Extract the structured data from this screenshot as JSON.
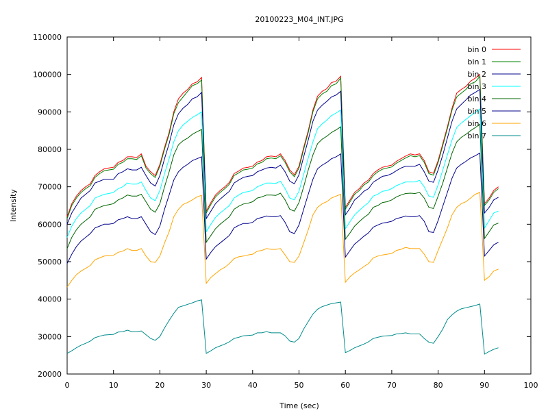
{
  "chart_data": {
    "type": "line",
    "title": "20100223_M04_INT.JPG",
    "xlabel": "Time (sec)",
    "ylabel": "Intensity",
    "xlim": [
      0,
      100
    ],
    "ylim": [
      20000,
      110000
    ],
    "xticks": [
      0,
      10,
      20,
      30,
      40,
      50,
      60,
      70,
      80,
      90,
      100
    ],
    "yticks": [
      20000,
      30000,
      40000,
      50000,
      60000,
      70000,
      80000,
      90000,
      100000,
      110000
    ],
    "grid": false,
    "legend_position": "top-right",
    "x": [
      0,
      1,
      2,
      3,
      4,
      5,
      6,
      7,
      8,
      9,
      10,
      11,
      12,
      13,
      14,
      15,
      16,
      17,
      18,
      19,
      20,
      21,
      22,
      23,
      24,
      25,
      26,
      27,
      28,
      29,
      30,
      31,
      32,
      33,
      34,
      35,
      36,
      37,
      38,
      39,
      40,
      41,
      42,
      43,
      44,
      45,
      46,
      47,
      48,
      49,
      50,
      51,
      52,
      53,
      54,
      55,
      56,
      57,
      58,
      59,
      60,
      61,
      62,
      63,
      64,
      65,
      66,
      67,
      68,
      69,
      70,
      71,
      72,
      73,
      74,
      75,
      76,
      77,
      78,
      79,
      80,
      81,
      82,
      83,
      84,
      85,
      86,
      87,
      88,
      89,
      90,
      91,
      92,
      93
    ],
    "series": [
      {
        "name": "bin 0",
        "color": "#ff0000",
        "values": [
          62000,
          65500,
          67500,
          69000,
          70000,
          70800,
          73000,
          74000,
          74800,
          75000,
          75200,
          76500,
          77000,
          78000,
          78000,
          77800,
          78800,
          75500,
          74000,
          73000,
          76000,
          80500,
          84500,
          90000,
          93500,
          95000,
          96000,
          97500,
          98000,
          99200,
          63500,
          65800,
          67800,
          69000,
          70000,
          71200,
          73500,
          74200,
          75000,
          75200,
          75500,
          76600,
          77000,
          78000,
          78200,
          78000,
          78800,
          77000,
          74500,
          73200,
          75500,
          80500,
          85000,
          90500,
          94200,
          95500,
          96200,
          97800,
          98200,
          99500,
          64500,
          66500,
          68500,
          69500,
          71000,
          71800,
          73500,
          74500,
          75200,
          75500,
          75800,
          76800,
          77500,
          78200,
          78800,
          78500,
          78800,
          77000,
          74000,
          73600,
          77000,
          81500,
          86000,
          91000,
          95000,
          96000,
          96800,
          98200,
          99000,
          100000,
          65500,
          67000,
          69000,
          70000
        ]
      },
      {
        "name": "bin 1",
        "color": "#008000",
        "values": [
          61500,
          65000,
          67000,
          68500,
          69500,
          70300,
          72500,
          73500,
          74300,
          74500,
          74700,
          76000,
          76500,
          77500,
          77500,
          77300,
          78300,
          75000,
          73500,
          72500,
          75500,
          80000,
          84000,
          89500,
          92500,
          94000,
          95500,
          97000,
          97500,
          98500,
          63000,
          65300,
          67300,
          68500,
          69500,
          70700,
          73000,
          73700,
          74500,
          74700,
          75000,
          76100,
          76500,
          77500,
          77700,
          77500,
          78300,
          76500,
          74000,
          72700,
          75000,
          80000,
          84500,
          90000,
          93500,
          94800,
          95500,
          97000,
          97500,
          99000,
          64000,
          66000,
          68000,
          69000,
          70500,
          71300,
          73000,
          74000,
          74700,
          75000,
          75300,
          76300,
          77000,
          77700,
          78300,
          78000,
          78300,
          76500,
          73500,
          73100,
          76500,
          81000,
          85500,
          90500,
          94000,
          95000,
          96000,
          97500,
          98000,
          99500,
          65000,
          66500,
          68500,
          69500
        ]
      },
      {
        "name": "bin 2",
        "color": "#00008b",
        "values": [
          60000,
          63000,
          65000,
          67000,
          68000,
          69000,
          71000,
          71500,
          72000,
          72000,
          72000,
          73500,
          74000,
          74800,
          74500,
          74500,
          75200,
          73000,
          71000,
          70200,
          73000,
          77500,
          81500,
          86500,
          89500,
          91000,
          92000,
          93500,
          94000,
          95200,
          61500,
          63500,
          65500,
          66700,
          67800,
          68800,
          71000,
          71800,
          72500,
          72800,
          73000,
          74000,
          74500,
          75000,
          75200,
          75000,
          75800,
          74000,
          71500,
          70800,
          73200,
          78000,
          82500,
          87500,
          90500,
          91800,
          92800,
          94000,
          94500,
          95500,
          62500,
          64300,
          66500,
          67500,
          68800,
          69500,
          71200,
          72000,
          72800,
          73000,
          73500,
          74300,
          75000,
          75500,
          75500,
          75500,
          76000,
          74000,
          71500,
          71200,
          74500,
          78500,
          83000,
          87500,
          90800,
          92000,
          93200,
          94500,
          95200,
          96000,
          63000,
          64500,
          66500,
          67200
        ]
      },
      {
        "name": "bin 3",
        "color": "#00ffff",
        "values": [
          56500,
          59500,
          61500,
          63000,
          64000,
          65000,
          67000,
          67500,
          68000,
          68200,
          68500,
          69500,
          70000,
          71000,
          70700,
          70700,
          71300,
          69000,
          67000,
          66300,
          69000,
          73500,
          77500,
          82000,
          85000,
          86500,
          87500,
          88500,
          89200,
          90000,
          58000,
          60000,
          61800,
          63000,
          64000,
          65000,
          67000,
          67800,
          68500,
          68700,
          69000,
          70000,
          70500,
          71000,
          71000,
          70900,
          71500,
          69500,
          67000,
          66500,
          68800,
          73300,
          77700,
          82000,
          85500,
          86800,
          87800,
          89000,
          89700,
          90500,
          58800,
          60700,
          62500,
          63700,
          64800,
          65800,
          67500,
          68000,
          68800,
          69000,
          69500,
          70300,
          70800,
          71300,
          71300,
          71300,
          71700,
          70000,
          67500,
          67200,
          70500,
          74500,
          78500,
          82500,
          85800,
          87000,
          88000,
          89000,
          89800,
          90800,
          59000,
          61000,
          63000,
          63500
        ]
      },
      {
        "name": "bin 4",
        "color": "#006400",
        "values": [
          53500,
          56500,
          58500,
          60000,
          61000,
          62000,
          64000,
          64500,
          65000,
          65200,
          65500,
          66500,
          67000,
          67800,
          67500,
          67500,
          68000,
          66000,
          64000,
          63200,
          65500,
          70000,
          74000,
          78500,
          81200,
          82300,
          83000,
          84000,
          84700,
          85300,
          55200,
          57000,
          58800,
          60000,
          61000,
          62000,
          64000,
          64800,
          65400,
          65600,
          66000,
          67000,
          67300,
          67800,
          67800,
          67700,
          68300,
          66500,
          64000,
          63500,
          65800,
          70000,
          74500,
          78500,
          81500,
          82700,
          83500,
          84500,
          85200,
          86000,
          56000,
          57700,
          59500,
          60700,
          61800,
          62700,
          64500,
          65000,
          65800,
          66000,
          66500,
          67300,
          67800,
          68200,
          68300,
          68200,
          68500,
          67000,
          64500,
          64200,
          67500,
          71000,
          75000,
          79000,
          82000,
          83200,
          84000,
          85000,
          85800,
          86700,
          56200,
          58000,
          59800,
          60300
        ]
      },
      {
        "name": "bin 5",
        "color": "#00008b",
        "values": [
          49500,
          52000,
          54000,
          55500,
          56500,
          57500,
          59000,
          59500,
          60000,
          60000,
          60200,
          61200,
          61500,
          62000,
          61500,
          61500,
          62000,
          60000,
          58000,
          57200,
          59500,
          64000,
          67800,
          71800,
          74000,
          75200,
          76000,
          77000,
          77500,
          78000,
          50700,
          52500,
          54000,
          55000,
          56000,
          57000,
          59000,
          59700,
          60200,
          60200,
          60500,
          61500,
          61800,
          62200,
          62000,
          62000,
          62300,
          60500,
          58000,
          57500,
          59800,
          64000,
          68000,
          72000,
          74800,
          75800,
          76500,
          77500,
          78000,
          78800,
          51200,
          53000,
          54700,
          55700,
          56800,
          57700,
          59200,
          59800,
          60300,
          60500,
          60800,
          61500,
          61800,
          62200,
          62000,
          62000,
          62300,
          60800,
          58000,
          57800,
          61000,
          64800,
          68500,
          72300,
          75000,
          76000,
          76800,
          77700,
          78300,
          79000,
          51500,
          53000,
          54500,
          55200
        ]
      },
      {
        "name": "bin 6",
        "color": "#ffa500",
        "values": [
          43200,
          45000,
          46500,
          47500,
          48200,
          49000,
          50500,
          51000,
          51500,
          51600,
          51700,
          52500,
          52800,
          53500,
          53000,
          53000,
          53500,
          51500,
          50000,
          49800,
          51500,
          55000,
          58000,
          62000,
          64000,
          65300,
          65800,
          66500,
          67300,
          67700,
          44200,
          45800,
          46800,
          47800,
          48500,
          49500,
          50800,
          51300,
          51500,
          51800,
          52000,
          52800,
          53000,
          53500,
          53300,
          53300,
          53500,
          51800,
          50000,
          49800,
          51500,
          55000,
          58500,
          62500,
          64500,
          65500,
          66000,
          67000,
          67500,
          68000,
          44500,
          46000,
          47000,
          47800,
          48700,
          49500,
          51000,
          51500,
          51800,
          52000,
          52200,
          53000,
          53300,
          53800,
          53500,
          53500,
          53500,
          52000,
          50000,
          49800,
          53000,
          56000,
          59000,
          62500,
          64500,
          65500,
          66000,
          67000,
          68000,
          68500,
          45000,
          46000,
          47500,
          48000
        ]
      },
      {
        "name": "bin 7",
        "color": "#008b8b",
        "values": [
          25500,
          26200,
          27000,
          27700,
          28200,
          28800,
          29700,
          30100,
          30400,
          30500,
          30600,
          31200,
          31300,
          31700,
          31300,
          31300,
          31500,
          30500,
          29500,
          29000,
          30000,
          32300,
          34300,
          36200,
          37800,
          38200,
          38600,
          39000,
          39500,
          39800,
          25500,
          26200,
          27000,
          27500,
          28000,
          28600,
          29500,
          29800,
          30200,
          30300,
          30400,
          31000,
          31000,
          31300,
          31000,
          31000,
          31000,
          30200,
          28800,
          28500,
          29500,
          32000,
          34000,
          36000,
          37300,
          38000,
          38400,
          38800,
          39000,
          39200,
          25700,
          26300,
          27000,
          27500,
          28000,
          28600,
          29500,
          29800,
          30100,
          30200,
          30300,
          30700,
          30800,
          31000,
          30700,
          30700,
          30700,
          29500,
          28500,
          28200,
          30000,
          32000,
          34500,
          35800,
          36800,
          37400,
          37700,
          38000,
          38300,
          38700,
          25300,
          26000,
          26600,
          27000
        ]
      }
    ]
  }
}
